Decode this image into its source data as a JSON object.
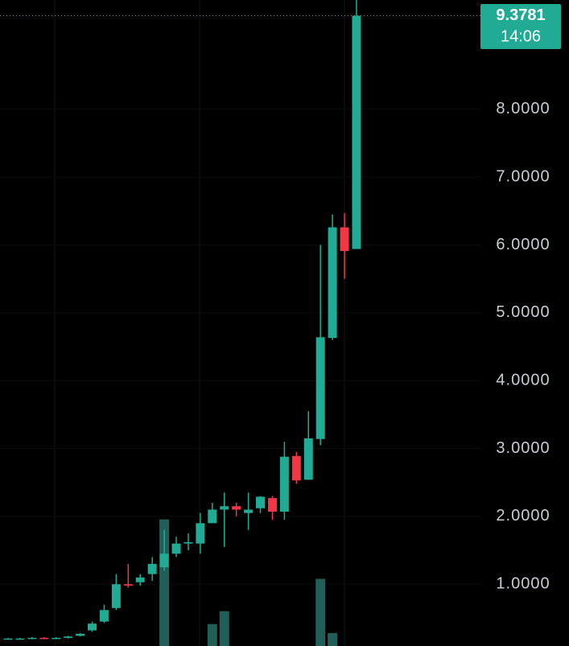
{
  "chart_data": {
    "type": "candlestick",
    "categories": [
      null,
      null,
      null,
      null,
      null,
      null,
      null,
      null,
      null,
      null,
      null,
      null,
      null,
      null,
      null,
      null,
      null,
      null,
      null,
      null,
      null,
      null,
      null,
      null,
      null,
      null,
      null,
      null,
      null,
      null
    ],
    "open": [
      0.19,
      0.2,
      0.2,
      0.21,
      0.2,
      0.21,
      0.24,
      0.32,
      0.45,
      0.65,
      1.0,
      1.03,
      1.15,
      1.25,
      1.45,
      1.6,
      1.6,
      1.9,
      2.1,
      2.15,
      2.05,
      2.12,
      2.27,
      2.07,
      2.89,
      2.54,
      3.14,
      4.63,
      6.26,
      5.94
    ],
    "high": [
      0.21,
      0.21,
      0.22,
      0.22,
      0.22,
      0.24,
      0.28,
      0.45,
      0.7,
      1.15,
      1.3,
      1.15,
      1.4,
      1.8,
      1.7,
      1.75,
      2.05,
      2.2,
      2.35,
      2.2,
      2.35,
      2.3,
      2.3,
      3.1,
      2.95,
      3.55,
      6.0,
      6.45,
      6.47,
      9.61
    ],
    "low": [
      0.19,
      0.19,
      0.19,
      0.19,
      0.19,
      0.2,
      0.23,
      0.3,
      0.43,
      0.62,
      0.95,
      0.98,
      1.05,
      1.2,
      1.4,
      1.5,
      1.45,
      1.9,
      1.55,
      2.0,
      1.8,
      2.05,
      1.95,
      1.95,
      2.48,
      2.54,
      3.05,
      4.6,
      5.5,
      5.94
    ],
    "close": [
      0.2,
      0.2,
      0.21,
      0.2,
      0.21,
      0.23,
      0.27,
      0.42,
      0.62,
      1.0,
      0.98,
      1.1,
      1.3,
      1.45,
      1.6,
      1.62,
      1.9,
      2.1,
      2.15,
      2.1,
      2.1,
      2.29,
      2.07,
      2.88,
      2.53,
      3.15,
      4.64,
      6.26,
      5.91,
      9.3781
    ],
    "volume": [
      null,
      null,
      null,
      null,
      null,
      null,
      null,
      null,
      null,
      null,
      null,
      null,
      null,
      98,
      null,
      null,
      null,
      17,
      27,
      null,
      null,
      null,
      null,
      null,
      null,
      null,
      52,
      10,
      null,
      null
    ],
    "volume_ylim": [
      0,
      500
    ],
    "up_color": "#22ab94",
    "down_color": "#f23645",
    "volume_color": "#1f5f58",
    "ylim": [
      0.09,
      9.61
    ],
    "yticks": [
      {
        "value": 1,
        "label": "1.0000"
      },
      {
        "value": 2,
        "label": "2.0000"
      },
      {
        "value": 3,
        "label": "3.0000"
      },
      {
        "value": 4,
        "label": "4.0000"
      },
      {
        "value": 5,
        "label": "5.0000"
      },
      {
        "value": 6,
        "label": "6.0000"
      },
      {
        "value": 7,
        "label": "7.0000"
      },
      {
        "value": 8,
        "label": "8.0000"
      }
    ],
    "last_price": 9.3781,
    "countdown": "14:06"
  }
}
